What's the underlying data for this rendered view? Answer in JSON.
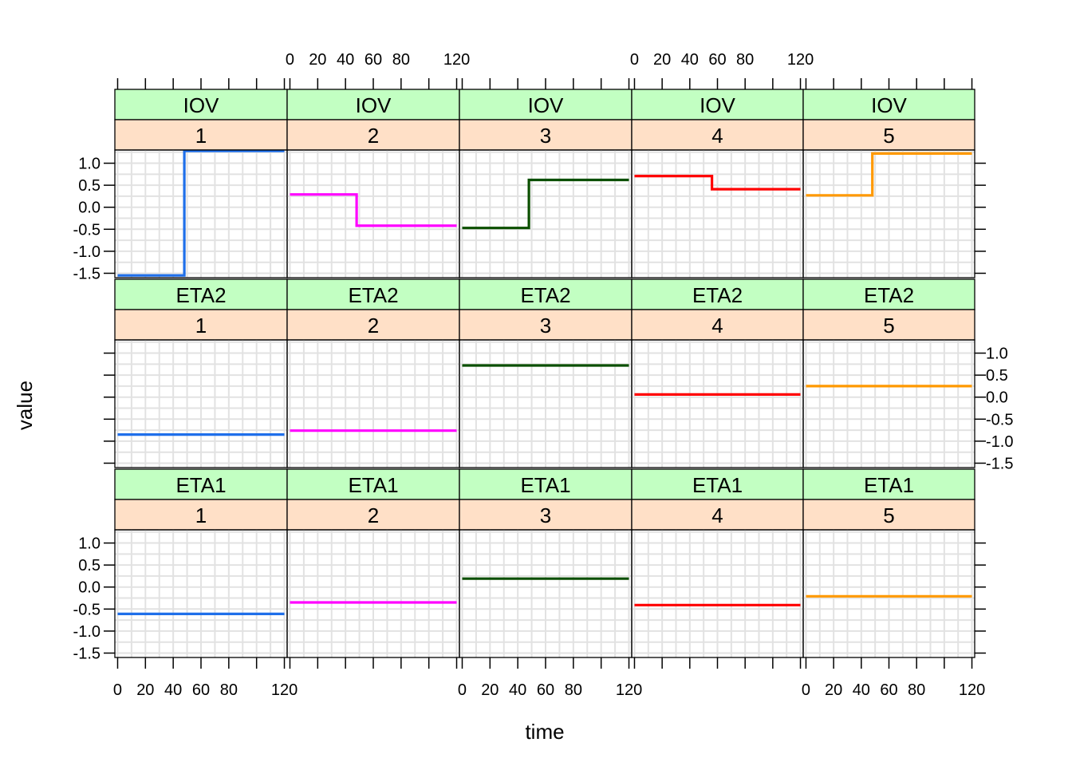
{
  "chart_data": {
    "type": "line",
    "layout": "lattice 5 columns x 3 rows, step lines",
    "xlabel": "time",
    "ylabel": "value",
    "xlim": [
      -2,
      122
    ],
    "ylim": [
      -1.6,
      1.3
    ],
    "x_ticks": [
      0,
      20,
      40,
      60,
      80,
      100,
      120
    ],
    "x_tick_labels": [
      "0",
      "20",
      "40",
      "60",
      "80",
      "",
      "120"
    ],
    "y_ticks": [
      1.0,
      0.5,
      0.0,
      -0.5,
      -1.0,
      -1.5
    ],
    "y_tick_labels": [
      "1.0",
      "0.5",
      "0.0",
      "-0.5",
      "-1.0",
      "-1.5"
    ],
    "grid": true,
    "strip_colors": {
      "variable": "#c2ffc2",
      "id": "#ffe0c7"
    },
    "rows": [
      "IOV",
      "ETA2",
      "ETA1"
    ],
    "columns": [
      "1",
      "2",
      "3",
      "4",
      "5"
    ],
    "series_colors": [
      "#1f6fea",
      "#ff00ff",
      "#0b4f00",
      "#ff0000",
      "#ff9900"
    ],
    "panels": [
      {
        "variable": "IOV",
        "id": "1",
        "x": [
          0,
          48,
          48,
          120
        ],
        "y": [
          -1.55,
          -1.55,
          1.28,
          1.28
        ]
      },
      {
        "variable": "IOV",
        "id": "2",
        "x": [
          0,
          48,
          48,
          120
        ],
        "y": [
          0.29,
          0.29,
          -0.42,
          -0.42
        ]
      },
      {
        "variable": "IOV",
        "id": "3",
        "x": [
          0,
          48,
          48,
          120
        ],
        "y": [
          -0.47,
          -0.47,
          0.62,
          0.62
        ]
      },
      {
        "variable": "IOV",
        "id": "4",
        "x": [
          0,
          56,
          56,
          120
        ],
        "y": [
          0.71,
          0.71,
          0.41,
          0.41
        ]
      },
      {
        "variable": "IOV",
        "id": "5",
        "x": [
          0,
          48,
          48,
          120
        ],
        "y": [
          0.27,
          0.27,
          1.22,
          1.22
        ]
      },
      {
        "variable": "ETA2",
        "id": "1",
        "x": [
          0,
          120
        ],
        "y": [
          -0.85,
          -0.85
        ]
      },
      {
        "variable": "ETA2",
        "id": "2",
        "x": [
          0,
          120
        ],
        "y": [
          -0.76,
          -0.76
        ]
      },
      {
        "variable": "ETA2",
        "id": "3",
        "x": [
          0,
          120
        ],
        "y": [
          0.72,
          0.72
        ]
      },
      {
        "variable": "ETA2",
        "id": "4",
        "x": [
          0,
          120
        ],
        "y": [
          0.06,
          0.06
        ]
      },
      {
        "variable": "ETA2",
        "id": "5",
        "x": [
          0,
          120
        ],
        "y": [
          0.25,
          0.25
        ]
      },
      {
        "variable": "ETA1",
        "id": "1",
        "x": [
          0,
          120
        ],
        "y": [
          -0.61,
          -0.61
        ]
      },
      {
        "variable": "ETA1",
        "id": "2",
        "x": [
          0,
          120
        ],
        "y": [
          -0.35,
          -0.35
        ]
      },
      {
        "variable": "ETA1",
        "id": "3",
        "x": [
          0,
          120
        ],
        "y": [
          0.19,
          0.19
        ]
      },
      {
        "variable": "ETA1",
        "id": "4",
        "x": [
          0,
          120
        ],
        "y": [
          -0.41,
          -0.41
        ]
      },
      {
        "variable": "ETA1",
        "id": "5",
        "x": [
          0,
          120
        ],
        "y": [
          -0.21,
          -0.21
        ]
      }
    ]
  }
}
